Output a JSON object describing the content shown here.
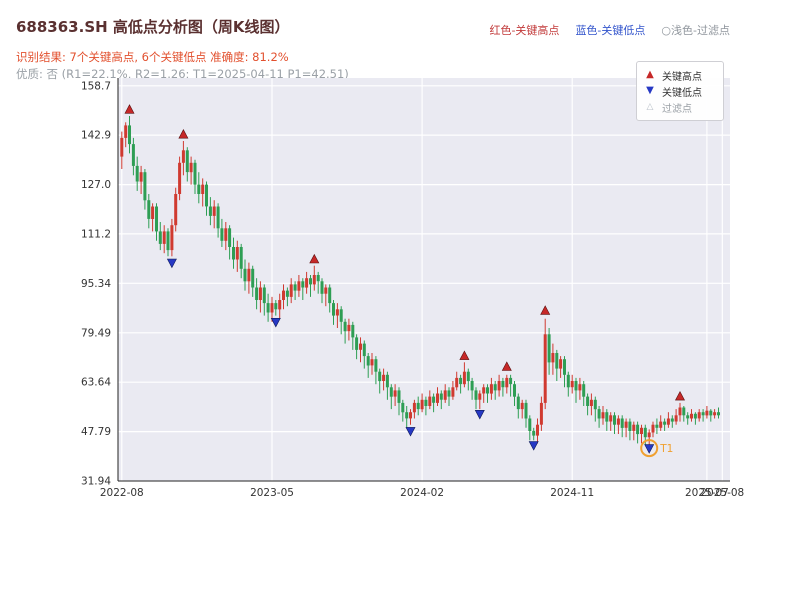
{
  "header": {
    "title": "688363.SH 高低点分析图（周K线图）",
    "legend_right": [
      {
        "label": "红色-关键高点",
        "color": "#c23a3a"
      },
      {
        "label": "蓝色-关键低点",
        "color": "#3355cc"
      },
      {
        "label": "○浅色-过滤点",
        "color": "#8f959c"
      }
    ],
    "result_line": "识别结果: 7个关键高点, 6个关键低点  准确度: 81.2%",
    "quality_line": "优质: 否 (R1=22.1%, R2=1.26; T1=2025-04-11 P1=42.51)"
  },
  "chart_data": {
    "type": "candlestick",
    "symbol": "688363.SH",
    "title": "688363.SH 高低点分析图（周K线图）",
    "period": "weekly",
    "grid": true,
    "legend_position": "top-right",
    "ylim": [
      31.94,
      161.2
    ],
    "xlim_weeks": [
      -1,
      158
    ],
    "y_ticks": [
      {
        "label": "158.7",
        "value": 158.7
      },
      {
        "label": "142.9",
        "value": 142.9
      },
      {
        "label": "127.0",
        "value": 127.0
      },
      {
        "label": "111.2",
        "value": 111.2
      },
      {
        "label": "95.34",
        "value": 95.34
      },
      {
        "label": "79.49",
        "value": 79.49
      },
      {
        "label": "63.64",
        "value": 63.64
      },
      {
        "label": "47.79",
        "value": 47.79
      },
      {
        "label": "31.94",
        "value": 31.94
      }
    ],
    "x_ticks": [
      {
        "label": "2022-08",
        "week": 0
      },
      {
        "label": "2023-05",
        "week": 39
      },
      {
        "label": "2024-02",
        "week": 78
      },
      {
        "label": "2024-11",
        "week": 117
      },
      {
        "label": "2025-07",
        "week": 152
      },
      {
        "label": "2025-08",
        "week": 156
      }
    ],
    "colors": {
      "up": "#d03a30",
      "down": "#2e9e54",
      "background": "#eaeaf2",
      "grid": "#ffffff",
      "key_high": "#c62828",
      "key_low": "#2638c4",
      "t1": "#f0a030"
    },
    "candles_ohlc": [
      [
        136,
        144,
        132,
        142
      ],
      [
        142,
        147,
        139,
        146
      ],
      [
        146,
        149,
        137,
        140
      ],
      [
        140,
        142,
        130,
        133
      ],
      [
        133,
        136,
        125,
        128
      ],
      [
        128,
        133,
        124,
        131
      ],
      [
        131,
        132,
        119,
        122
      ],
      [
        122,
        124,
        113,
        116
      ],
      [
        116,
        121,
        112,
        120
      ],
      [
        120,
        121,
        109,
        112
      ],
      [
        112,
        115,
        106,
        108
      ],
      [
        108,
        114,
        105,
        112
      ],
      [
        112,
        113,
        104,
        106
      ],
      [
        106,
        116,
        104,
        114
      ],
      [
        114,
        126,
        112,
        124
      ],
      [
        124,
        136,
        122,
        134
      ],
      [
        134,
        141,
        130,
        138
      ],
      [
        138,
        139,
        128,
        131
      ],
      [
        131,
        136,
        127,
        134
      ],
      [
        134,
        135,
        124,
        127
      ],
      [
        127,
        131,
        121,
        124
      ],
      [
        124,
        129,
        120,
        127
      ],
      [
        127,
        128,
        117,
        120
      ],
      [
        120,
        123,
        114,
        117
      ],
      [
        117,
        122,
        113,
        120
      ],
      [
        120,
        121,
        110,
        113
      ],
      [
        113,
        116,
        107,
        109
      ],
      [
        109,
        115,
        106,
        113
      ],
      [
        113,
        114,
        103,
        107
      ],
      [
        107,
        110,
        100,
        103
      ],
      [
        103,
        109,
        99,
        107
      ],
      [
        107,
        108,
        97,
        100
      ],
      [
        100,
        103,
        93,
        96
      ],
      [
        96,
        102,
        92,
        100
      ],
      [
        100,
        101,
        91,
        94
      ],
      [
        94,
        97,
        87,
        90
      ],
      [
        90,
        96,
        86,
        94
      ],
      [
        94,
        95,
        85,
        89
      ],
      [
        89,
        92,
        83,
        86
      ],
      [
        86,
        91,
        83,
        89
      ],
      [
        89,
        90,
        85,
        87
      ],
      [
        87,
        92,
        84,
        90
      ],
      [
        90,
        95,
        87,
        93
      ],
      [
        93,
        94,
        88,
        91
      ],
      [
        91,
        97,
        89,
        95
      ],
      [
        95,
        96,
        90,
        93
      ],
      [
        93,
        98,
        91,
        96
      ],
      [
        96,
        97,
        90,
        94
      ],
      [
        94,
        99,
        92,
        97
      ],
      [
        97,
        98,
        91,
        95
      ],
      [
        95,
        101,
        93,
        98
      ],
      [
        98,
        99,
        92,
        96
      ],
      [
        96,
        97,
        89,
        92
      ],
      [
        92,
        95,
        88,
        94
      ],
      [
        94,
        95,
        86,
        89
      ],
      [
        89,
        90,
        82,
        85
      ],
      [
        85,
        89,
        81,
        87
      ],
      [
        87,
        88,
        79,
        83
      ],
      [
        83,
        84,
        76,
        80
      ],
      [
        80,
        84,
        77,
        82
      ],
      [
        82,
        83,
        74,
        78
      ],
      [
        78,
        79,
        71,
        74
      ],
      [
        74,
        78,
        70,
        76
      ],
      [
        76,
        77,
        68,
        72
      ],
      [
        72,
        73,
        65,
        69
      ],
      [
        69,
        73,
        66,
        71
      ],
      [
        71,
        72,
        63,
        67
      ],
      [
        67,
        68,
        60,
        64
      ],
      [
        64,
        68,
        61,
        66
      ],
      [
        66,
        67,
        58,
        62
      ],
      [
        62,
        63,
        55,
        59
      ],
      [
        59,
        63,
        56,
        61
      ],
      [
        61,
        62,
        53,
        57
      ],
      [
        57,
        58,
        51,
        54
      ],
      [
        54,
        56,
        49,
        52
      ],
      [
        52,
        55,
        50,
        54
      ],
      [
        54,
        58,
        52,
        57
      ],
      [
        57,
        59,
        53,
        55
      ],
      [
        55,
        60,
        54,
        58
      ],
      [
        58,
        59,
        53,
        56
      ],
      [
        56,
        61,
        55,
        59
      ],
      [
        59,
        60,
        54,
        57
      ],
      [
        57,
        62,
        56,
        60
      ],
      [
        60,
        61,
        55,
        58
      ],
      [
        58,
        63,
        57,
        61
      ],
      [
        61,
        62,
        56,
        59
      ],
      [
        59,
        64,
        58,
        62
      ],
      [
        62,
        67,
        61,
        65
      ],
      [
        65,
        66,
        60,
        63
      ],
      [
        63,
        70,
        62,
        67
      ],
      [
        67,
        68,
        61,
        64
      ],
      [
        64,
        65,
        58,
        61
      ],
      [
        61,
        62,
        55,
        58
      ],
      [
        58,
        61,
        55,
        60
      ],
      [
        60,
        63,
        57,
        62
      ],
      [
        62,
        63,
        57,
        60
      ],
      [
        60,
        65,
        58,
        63
      ],
      [
        63,
        64,
        58,
        61
      ],
      [
        61,
        66,
        59,
        64
      ],
      [
        64,
        65,
        59,
        62
      ],
      [
        62,
        66,
        60,
        65
      ],
      [
        65,
        66,
        59,
        63
      ],
      [
        63,
        64,
        56,
        59
      ],
      [
        59,
        60,
        52,
        55
      ],
      [
        55,
        58,
        52,
        57
      ],
      [
        57,
        58,
        49,
        52
      ],
      [
        52,
        53,
        45,
        48
      ],
      [
        48,
        49,
        45,
        46.5
      ],
      [
        46.5,
        52,
        44,
        50
      ],
      [
        50,
        59,
        48,
        57
      ],
      [
        57,
        84,
        55,
        79
      ],
      [
        79,
        81,
        66,
        70
      ],
      [
        70,
        76,
        66,
        73
      ],
      [
        73,
        74,
        64,
        68
      ],
      [
        68,
        72,
        65,
        71
      ],
      [
        71,
        72,
        62,
        66
      ],
      [
        66,
        67,
        59,
        62
      ],
      [
        62,
        66,
        60,
        64
      ],
      [
        64,
        65,
        57,
        61
      ],
      [
        61,
        65,
        58,
        63
      ],
      [
        63,
        64,
        56,
        59
      ],
      [
        59,
        60,
        53,
        56
      ],
      [
        56,
        60,
        53,
        58
      ],
      [
        58,
        59,
        51,
        55
      ],
      [
        55,
        56,
        49,
        52
      ],
      [
        52,
        56,
        50,
        54
      ],
      [
        54,
        55,
        48,
        51
      ],
      [
        51,
        54,
        48,
        53
      ],
      [
        53,
        54,
        47,
        50
      ],
      [
        50,
        53,
        47,
        52
      ],
      [
        52,
        53,
        46,
        49
      ],
      [
        49,
        52,
        46,
        51
      ],
      [
        51,
        52,
        45,
        48
      ],
      [
        48,
        51,
        45,
        50
      ],
      [
        50,
        51,
        44,
        47
      ],
      [
        47,
        50,
        44,
        49
      ],
      [
        49,
        50,
        43.5,
        46
      ],
      [
        46,
        48.5,
        43.5,
        47.5
      ],
      [
        47.5,
        51,
        46,
        50
      ],
      [
        50,
        52,
        47,
        49
      ],
      [
        49,
        53,
        48,
        51
      ],
      [
        51,
        52,
        48,
        50
      ],
      [
        50,
        54,
        49,
        52
      ],
      [
        52,
        53,
        49,
        51
      ],
      [
        51,
        55,
        50,
        53
      ],
      [
        53,
        57,
        51,
        55.5
      ],
      [
        55.5,
        56,
        51,
        53
      ],
      [
        53,
        54,
        50,
        52
      ],
      [
        52,
        55,
        51,
        53.5
      ],
      [
        53.5,
        54,
        50,
        52
      ],
      [
        52,
        55,
        51,
        54
      ],
      [
        54,
        55,
        51,
        53
      ],
      [
        53,
        56,
        52,
        54.5
      ],
      [
        54.5,
        55,
        51,
        53
      ],
      [
        53,
        55,
        52,
        54
      ],
      [
        54,
        55.5,
        52,
        53
      ]
    ],
    "key_highs": [
      {
        "week": 2,
        "price": 151
      },
      {
        "week": 16,
        "price": 143
      },
      {
        "week": 50,
        "price": 103
      },
      {
        "week": 89,
        "price": 72
      },
      {
        "week": 100,
        "price": 68.5
      },
      {
        "week": 110,
        "price": 86.5
      },
      {
        "week": 145,
        "price": 59
      }
    ],
    "key_lows": [
      {
        "week": 13,
        "price": 102
      },
      {
        "week": 40,
        "price": 83
      },
      {
        "week": 75,
        "price": 48
      },
      {
        "week": 93,
        "price": 53.5
      },
      {
        "week": 107,
        "price": 43.5
      },
      {
        "week": 137,
        "price": 42.5
      }
    ],
    "t1_marker": {
      "week": 137,
      "price": 42.5,
      "label": "T1"
    },
    "legend_box": [
      {
        "label": "关键高点",
        "marker": "up-triangle",
        "color": "#c62828"
      },
      {
        "label": "关键低点",
        "marker": "down-triangle",
        "color": "#2638c4"
      },
      {
        "label": "过滤点",
        "marker": "open-triangle",
        "color": "#b9c0c9"
      }
    ]
  }
}
